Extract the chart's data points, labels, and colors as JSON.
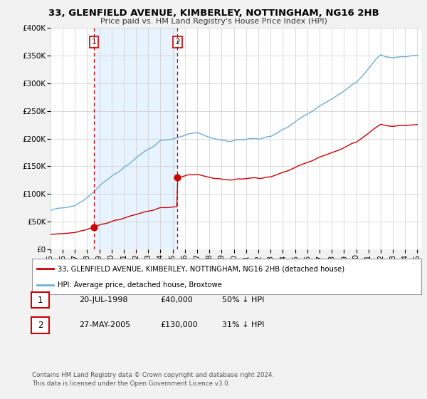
{
  "title": "33, GLENFIELD AVENUE, KIMBERLEY, NOTTINGHAM, NG16 2HB",
  "subtitle": "Price paid vs. HM Land Registry's House Price Index (HPI)",
  "ylabel_ticks": [
    "£0",
    "£50K",
    "£100K",
    "£150K",
    "£200K",
    "£250K",
    "£300K",
    "£350K",
    "£400K"
  ],
  "ytick_values": [
    0,
    50000,
    100000,
    150000,
    200000,
    250000,
    300000,
    350000,
    400000
  ],
  "ylim": [
    0,
    400000
  ],
  "xlim_start": 1995.0,
  "xlim_end": 2025.3,
  "sale1_x": 1998.55,
  "sale1_y": 40000,
  "sale2_x": 2005.39,
  "sale2_y": 130000,
  "hpi_color": "#6baed6",
  "sale_color": "#cc0000",
  "vline_color": "#cc0000",
  "shade_color": "#ddeeff",
  "background_color": "#f2f2f2",
  "plot_bg_color": "#ffffff",
  "legend_entry1": "33, GLENFIELD AVENUE, KIMBERLEY, NOTTINGHAM, NG16 2HB (detached house)",
  "legend_entry2": "HPI: Average price, detached house, Broxtowe",
  "table_row1": [
    "1",
    "20-JUL-1998",
    "£40,000",
    "50% ↓ HPI"
  ],
  "table_row2": [
    "2",
    "27-MAY-2005",
    "£130,000",
    "31% ↓ HPI"
  ],
  "footer": "Contains HM Land Registry data © Crown copyright and database right 2024.\nThis data is licensed under the Open Government Licence v3.0."
}
